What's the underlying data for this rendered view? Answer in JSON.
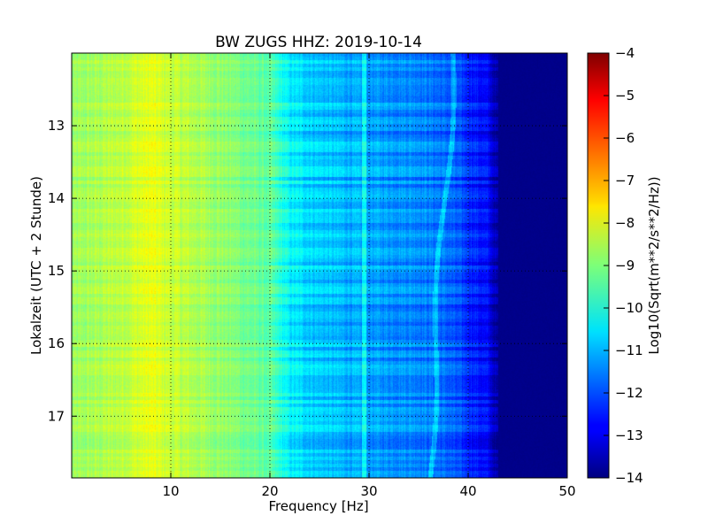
{
  "chart_data": {
    "type": "heatmap",
    "title": "BW ZUGS HHZ: 2019-10-14",
    "xlabel": "Frequency [Hz]",
    "ylabel": "Lokalzeit (UTC + 2 Stunde)",
    "xlim": [
      0,
      50
    ],
    "ylim": [
      12.0,
      17.85
    ],
    "x_ticks": [
      10,
      20,
      30,
      40,
      50
    ],
    "x_tick_labels": [
      "10",
      "20",
      "30",
      "40",
      "50"
    ],
    "y_ticks": [
      13,
      14,
      15,
      16,
      17
    ],
    "y_tick_labels": [
      "13",
      "14",
      "15",
      "16",
      "17"
    ],
    "grid": true,
    "colormap": "jet",
    "colorbar": {
      "label": "Log10(Sqrt(m**2/s**2/Hz))",
      "range": [
        -14,
        -4
      ],
      "ticks": [
        -4,
        -5,
        -6,
        -7,
        -8,
        -9,
        -10,
        -11,
        -12,
        -13,
        -14
      ],
      "tick_labels": [
        "−4",
        "−5",
        "−6",
        "−7",
        "−8",
        "−9",
        "−10",
        "−11",
        "−12",
        "−13",
        "−14"
      ]
    },
    "spectrum_profile": {
      "frequency_hz": [
        0,
        5,
        8,
        10,
        15,
        20,
        22,
        25,
        30,
        35,
        38,
        40,
        42,
        43,
        50
      ],
      "log10_amplitude": [
        -8.8,
        -8.4,
        -8.0,
        -8.3,
        -8.8,
        -9.4,
        -10.4,
        -10.8,
        -11.2,
        -11.4,
        -11.8,
        -12.3,
        -12.8,
        -13.8,
        -13.9
      ]
    },
    "features": [
      {
        "type": "line",
        "frequency_hz": 29.5,
        "description": "bright vertical line"
      },
      {
        "type": "line",
        "frequency_hz": 22.5,
        "description": "transition band"
      },
      {
        "type": "line",
        "frequency_hz": 38,
        "description": "wandering tonal line"
      }
    ]
  }
}
